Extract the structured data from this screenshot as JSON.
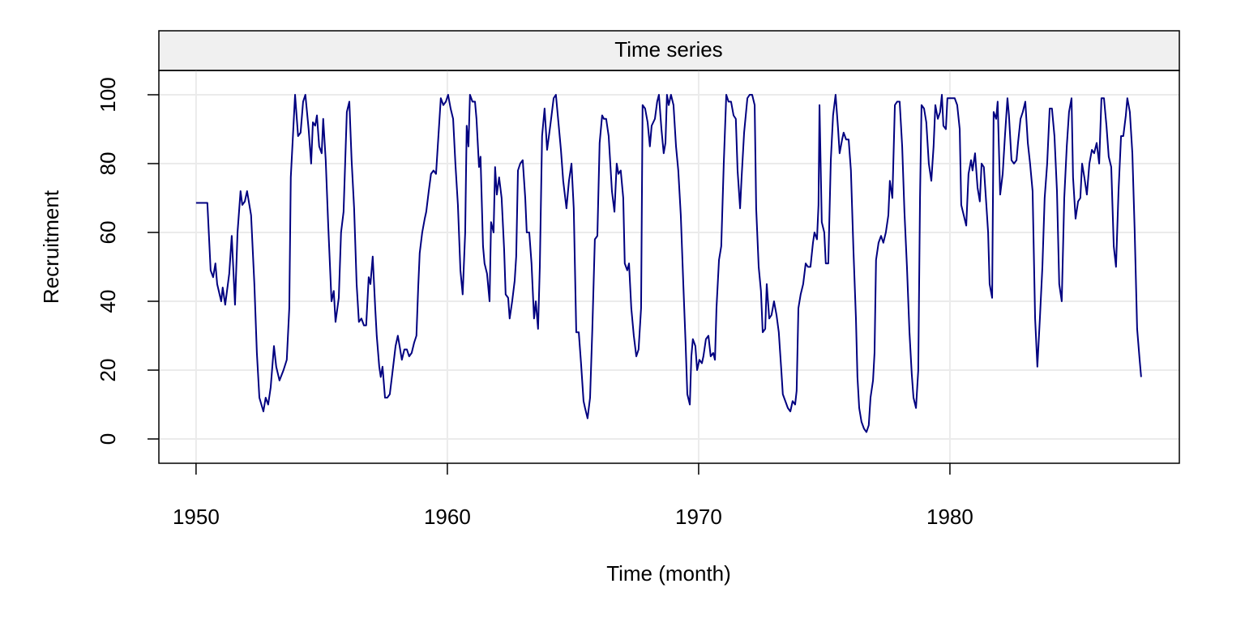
{
  "chart_data": {
    "type": "line",
    "title": "Time series",
    "xlabel": "Time (month)",
    "ylabel": "Recruitment",
    "color": "#000080",
    "grid": true,
    "xlim": [
      1948.52,
      1989.13
    ],
    "xticks": [
      1950,
      1960,
      1970,
      1980
    ],
    "ylim": [
      -7.06,
      107.06
    ],
    "yticks": [
      0,
      20,
      40,
      60,
      80,
      100
    ],
    "x": [
      1950.0,
      1950.45,
      1950.58,
      1950.68,
      1950.77,
      1950.84,
      1951.0,
      1951.06,
      1951.16,
      1951.32,
      1951.42,
      1951.55,
      1951.65,
      1951.77,
      1951.84,
      1951.94,
      1952.03,
      1952.19,
      1952.32,
      1952.42,
      1952.52,
      1952.68,
      1952.77,
      1952.87,
      1952.97,
      1953.1,
      1953.19,
      1953.32,
      1953.48,
      1953.61,
      1953.71,
      1953.77,
      1953.94,
      1954.06,
      1954.16,
      1954.26,
      1954.35,
      1954.48,
      1954.58,
      1954.65,
      1954.74,
      1954.81,
      1954.9,
      1955.0,
      1955.06,
      1955.16,
      1955.26,
      1955.39,
      1955.48,
      1955.55,
      1955.68,
      1955.77,
      1955.87,
      1956.0,
      1956.1,
      1956.19,
      1956.29,
      1956.39,
      1956.48,
      1956.58,
      1956.68,
      1956.77,
      1956.87,
      1956.94,
      1957.03,
      1957.13,
      1957.19,
      1957.29,
      1957.35,
      1957.42,
      1957.52,
      1957.61,
      1957.71,
      1957.81,
      1957.94,
      1958.03,
      1958.1,
      1958.19,
      1958.29,
      1958.39,
      1958.48,
      1958.58,
      1958.68,
      1958.77,
      1958.84,
      1958.9,
      1959.0,
      1959.1,
      1959.16,
      1959.26,
      1959.35,
      1959.45,
      1959.55,
      1959.61,
      1959.74,
      1959.84,
      1959.94,
      1960.03,
      1960.13,
      1960.23,
      1960.32,
      1960.42,
      1960.52,
      1960.61,
      1960.71,
      1960.77,
      1960.84,
      1960.9,
      1961.0,
      1961.1,
      1961.16,
      1961.26,
      1961.32,
      1961.42,
      1961.48,
      1961.58,
      1961.68,
      1961.74,
      1961.84,
      1961.9,
      1961.97,
      1962.06,
      1962.16,
      1962.26,
      1962.32,
      1962.42,
      1962.48,
      1962.58,
      1962.68,
      1962.74,
      1962.81,
      1962.9,
      1963.0,
      1963.1,
      1963.16,
      1963.26,
      1963.35,
      1963.45,
      1963.52,
      1963.61,
      1963.68,
      1963.77,
      1963.87,
      1963.97,
      1964.06,
      1964.13,
      1964.23,
      1964.32,
      1964.42,
      1964.52,
      1964.61,
      1964.74,
      1964.84,
      1964.94,
      1965.03,
      1965.13,
      1965.23,
      1965.32,
      1965.42,
      1965.48,
      1965.58,
      1965.68,
      1965.77,
      1965.87,
      1965.97,
      1966.06,
      1966.16,
      1966.23,
      1966.32,
      1966.42,
      1966.55,
      1966.65,
      1966.74,
      1966.81,
      1966.9,
      1967.0,
      1967.06,
      1967.16,
      1967.23,
      1967.32,
      1967.42,
      1967.52,
      1967.61,
      1967.71,
      1967.77,
      1967.87,
      1967.97,
      1968.06,
      1968.13,
      1968.26,
      1968.35,
      1968.42,
      1968.52,
      1968.61,
      1968.68,
      1968.74,
      1968.81,
      1968.9,
      1969.0,
      1969.1,
      1969.19,
      1969.29,
      1969.39,
      1969.48,
      1969.55,
      1969.65,
      1969.71,
      1969.77,
      1969.87,
      1969.94,
      1970.03,
      1970.13,
      1970.19,
      1970.29,
      1970.39,
      1970.48,
      1970.58,
      1970.65,
      1970.71,
      1970.81,
      1970.9,
      1971.0,
      1971.1,
      1971.19,
      1971.29,
      1971.39,
      1971.48,
      1971.55,
      1971.65,
      1971.71,
      1971.81,
      1971.94,
      1972.03,
      1972.13,
      1972.23,
      1972.29,
      1972.39,
      1972.48,
      1972.55,
      1972.65,
      1972.71,
      1972.81,
      1972.9,
      1973.0,
      1973.1,
      1973.19,
      1973.29,
      1973.35,
      1973.45,
      1973.55,
      1973.65,
      1973.74,
      1973.84,
      1973.9,
      1973.97,
      1974.06,
      1974.16,
      1974.26,
      1974.35,
      1974.45,
      1974.55,
      1974.61,
      1974.71,
      1974.77,
      1974.81,
      1974.9,
      1975.0,
      1975.06,
      1975.16,
      1975.26,
      1975.35,
      1975.45,
      1975.55,
      1975.61,
      1975.71,
      1975.77,
      1975.87,
      1975.97,
      1976.06,
      1976.16,
      1976.26,
      1976.32,
      1976.39,
      1976.48,
      1976.58,
      1976.68,
      1976.77,
      1976.84,
      1976.94,
      1977.0,
      1977.06,
      1977.16,
      1977.26,
      1977.35,
      1977.45,
      1977.55,
      1977.61,
      1977.71,
      1977.81,
      1977.9,
      1978.0,
      1978.1,
      1978.19,
      1978.29,
      1978.39,
      1978.48,
      1978.55,
      1978.65,
      1978.74,
      1978.81,
      1978.87,
      1978.97,
      1979.06,
      1979.16,
      1979.26,
      1979.35,
      1979.42,
      1979.52,
      1979.61,
      1979.68,
      1979.74,
      1979.84,
      1979.9,
      1980.0,
      1980.1,
      1980.19,
      1980.29,
      1980.39,
      1980.45,
      1980.55,
      1980.65,
      1980.74,
      1980.84,
      1980.9,
      1981.0,
      1981.1,
      1981.19,
      1981.26,
      1981.35,
      1981.45,
      1981.52,
      1981.58,
      1981.68,
      1981.74,
      1981.84,
      1981.9,
      1982.0,
      1982.1,
      1982.19,
      1982.29,
      1982.35,
      1982.45,
      1982.55,
      1982.65,
      1982.71,
      1982.81,
      1982.9,
      1983.0,
      1983.1,
      1983.19,
      1983.29,
      1983.39,
      1983.48,
      1983.58,
      1983.68,
      1983.77,
      1983.87,
      1983.97,
      1984.06,
      1984.16,
      1984.26,
      1984.35,
      1984.45,
      1984.55,
      1984.65,
      1984.74,
      1984.84,
      1984.9,
      1985.0,
      1985.1,
      1985.19,
      1985.26,
      1985.35,
      1985.45,
      1985.55,
      1985.65,
      1985.74,
      1985.84,
      1985.94,
      1986.03,
      1986.13,
      1986.23,
      1986.32,
      1986.42,
      1986.52,
      1986.61,
      1986.71,
      1986.81,
      1986.9,
      1987.0,
      1987.06,
      1987.16,
      1987.26,
      1987.35,
      1987.45,
      1987.55,
      1987.61
    ],
    "values": [
      68.6,
      68.6,
      49,
      47,
      51,
      45,
      40,
      44,
      39,
      48,
      59,
      39,
      60,
      72,
      68,
      69,
      72,
      65,
      45,
      25,
      12,
      8,
      12,
      10,
      15,
      27,
      21,
      17,
      20,
      23,
      38,
      76,
      100,
      88,
      89,
      98,
      100,
      90,
      80,
      92,
      91,
      94,
      85,
      83,
      93,
      81,
      62,
      40,
      43,
      34,
      41,
      60,
      66,
      95,
      98,
      81,
      67,
      45,
      34,
      35,
      33,
      33,
      47,
      45,
      53,
      38,
      30,
      21,
      18,
      21,
      12,
      12,
      13,
      19,
      27,
      30,
      27,
      23,
      26,
      26,
      24,
      25,
      28,
      30,
      44,
      54,
      60,
      64,
      66,
      72,
      77,
      78,
      77,
      84,
      99,
      97,
      98,
      100,
      96,
      93,
      80,
      68,
      49,
      42,
      60,
      91,
      85,
      100,
      98,
      98,
      93,
      79,
      82,
      56,
      51,
      48,
      40,
      63,
      60,
      79,
      71,
      76,
      70,
      55,
      42,
      41,
      35,
      40,
      46,
      53,
      78,
      80,
      81,
      70,
      60,
      60,
      51,
      35,
      40,
      32,
      50,
      88,
      96,
      84,
      89,
      93,
      99,
      100,
      92,
      84,
      75,
      67,
      75,
      80,
      67,
      31,
      31,
      22,
      11,
      9,
      6,
      12,
      32,
      58,
      59,
      86,
      94,
      93,
      93,
      88,
      72,
      66,
      80,
      77,
      78,
      70,
      51,
      49,
      51,
      38,
      30,
      24,
      26,
      38,
      97,
      96,
      92,
      85,
      91,
      93,
      98,
      100,
      90,
      83,
      86,
      100,
      97,
      100,
      97,
      85,
      78,
      65,
      45,
      28,
      13,
      10,
      24,
      29,
      27,
      20,
      23,
      22,
      24,
      29,
      30,
      24,
      25,
      23,
      38,
      52,
      56,
      80,
      100,
      98,
      98,
      94,
      93,
      78,
      67,
      76,
      89,
      99,
      100,
      100,
      97,
      67,
      50,
      43,
      31,
      32,
      45,
      35,
      36,
      40,
      36,
      31,
      20,
      13,
      11,
      9,
      8,
      11,
      10,
      14,
      38,
      42,
      45,
      51,
      50,
      50,
      57,
      60,
      58,
      68,
      97,
      63,
      60,
      51,
      51,
      81,
      94,
      100,
      90,
      83,
      87,
      89,
      87,
      87,
      78,
      55,
      35,
      18,
      9,
      5,
      3,
      2,
      4,
      12,
      17,
      25,
      52,
      57,
      59,
      57,
      60,
      65,
      75,
      70,
      97,
      98,
      98,
      85,
      66,
      50,
      31,
      19,
      12,
      9,
      20,
      70,
      97,
      96,
      92,
      80,
      75,
      85,
      97,
      93,
      95,
      100,
      91,
      90,
      99,
      99,
      99,
      99,
      97,
      90,
      68,
      65,
      62,
      77,
      81,
      78,
      83,
      73,
      69,
      80,
      79,
      68,
      60,
      45,
      41,
      95,
      93,
      98,
      71,
      77,
      88,
      99,
      94,
      81,
      80,
      81,
      86,
      93,
      95,
      98,
      86,
      80,
      72,
      35,
      21,
      35,
      50,
      70,
      80,
      96,
      96,
      88,
      72,
      45,
      40,
      70,
      85,
      95,
      99,
      76,
      64,
      69,
      70,
      80,
      76,
      71,
      80,
      84,
      83,
      86,
      80,
      99,
      99,
      91,
      82,
      79,
      56,
      50,
      72,
      88,
      88,
      94,
      99,
      95,
      83,
      61,
      32,
      23,
      18
    ]
  }
}
